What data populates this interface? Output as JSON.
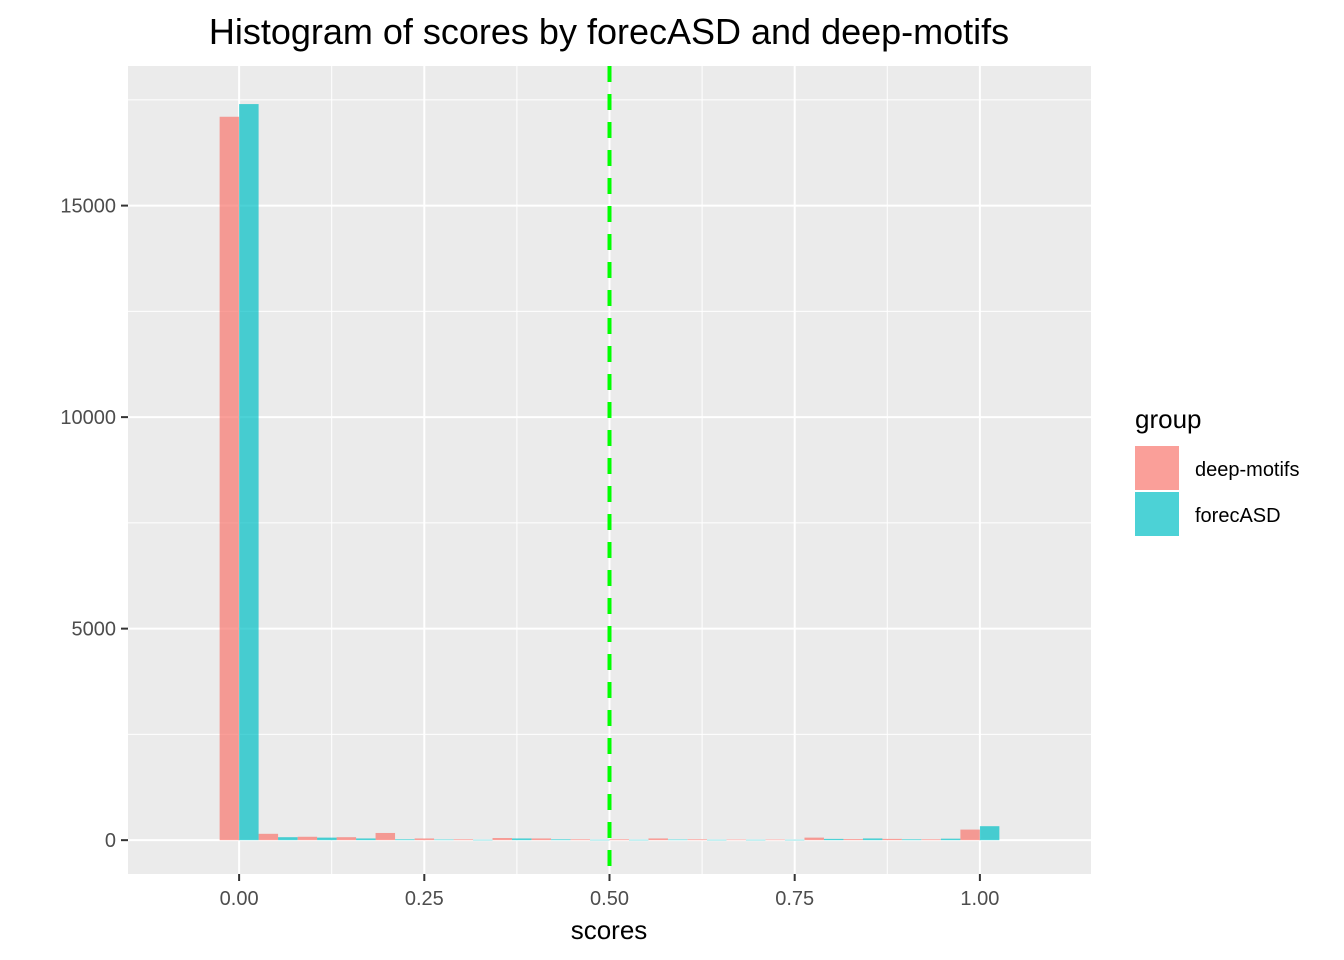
{
  "chart_data": {
    "type": "bar",
    "title": "Histogram of scores by forecASD and deep-motifs",
    "xlabel": "scores",
    "ylabel": "",
    "xlim": [
      -0.15,
      1.15
    ],
    "ylim": [
      -800,
      18300
    ],
    "x_ticks": [
      0.0,
      0.25,
      0.5,
      0.75,
      1.0
    ],
    "x_tick_labels": [
      "0.00",
      "0.25",
      "0.50",
      "0.75",
      "1.00"
    ],
    "y_ticks": [
      0,
      5000,
      10000,
      15000
    ],
    "y_tick_labels": [
      "0",
      "5000",
      "10000",
      "15000"
    ],
    "grid": true,
    "legend_title": "group",
    "legend_position": "right",
    "bin_centers": [
      0.0,
      0.0526,
      0.1053,
      0.1579,
      0.2105,
      0.2632,
      0.3158,
      0.3684,
      0.4211,
      0.4737,
      0.5263,
      0.5789,
      0.6316,
      0.6842,
      0.7368,
      0.7895,
      0.8421,
      0.8947,
      0.9474,
      1.0
    ],
    "series": [
      {
        "name": "deep-motifs",
        "color": "#F8766D",
        "values": [
          17100,
          150,
          80,
          70,
          170,
          40,
          20,
          50,
          40,
          20,
          20,
          40,
          20,
          15,
          15,
          60,
          25,
          30,
          20,
          250
        ]
      },
      {
        "name": "forecASD",
        "color": "#00BFC4",
        "values": [
          17400,
          70,
          60,
          40,
          20,
          15,
          10,
          40,
          20,
          10,
          10,
          15,
          10,
          10,
          10,
          30,
          40,
          20,
          35,
          330
        ]
      }
    ],
    "threshold_line": {
      "x": 0.5,
      "color": "#00FF00",
      "style": "dashed"
    }
  }
}
